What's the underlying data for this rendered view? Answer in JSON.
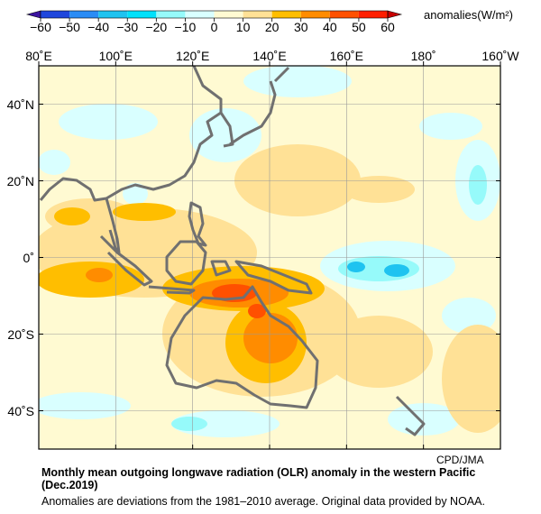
{
  "colorbar": {
    "unit_label": "anomalies(W/m²)",
    "ticks": [
      "−60",
      "−50",
      "−40",
      "−30",
      "−20",
      "−10",
      "0",
      "10",
      "20",
      "30",
      "40",
      "50",
      "60"
    ],
    "colors": [
      "#1e46dc",
      "#2a8cf5",
      "#1ec3f0",
      "#00e1fa",
      "#96fafa",
      "#d9ffff",
      "#fffad2",
      "#ffe196",
      "#ffbe00",
      "#ff8c00",
      "#ff5000",
      "#ff1e00"
    ],
    "low_end_color": "#3c14a0",
    "high_end_color": "#c80000"
  },
  "map": {
    "lon_labels": [
      "80˚E",
      "100˚E",
      "120˚E",
      "140˚E",
      "160˚E",
      "180˚",
      "160˚W"
    ],
    "lat_labels": [
      "40˚N",
      "20˚N",
      "0˚",
      "20˚S",
      "40˚S"
    ],
    "coastline_color": "#707070"
  },
  "credit": "CPD/JMA",
  "title": "Monthly mean outgoing longwave radiation (OLR) anomaly in the western Pacific (Dec.2019)",
  "note": "Anomalies are deviations from the 1981–2010 average. Original data provided by NOAA."
}
